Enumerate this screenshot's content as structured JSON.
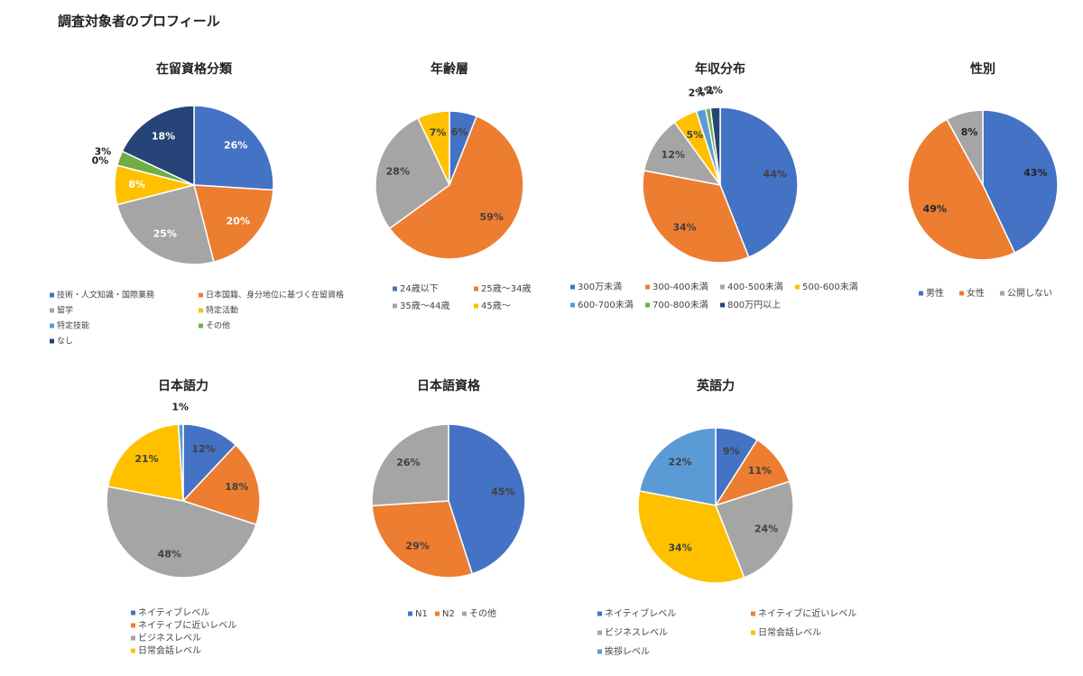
{
  "title": "調査対象者のプロフィール",
  "chart_data": [
    {
      "type": "pie",
      "title": "在留資格分類",
      "categories": [
        "技術・人文知識・国際業務",
        "日本国籍、身分地位に基づく在留資格",
        "留学",
        "特定活動",
        "特定技能",
        "その他",
        "なし"
      ],
      "values": [
        26,
        20,
        25,
        8,
        0,
        3,
        18
      ],
      "value_labels": [
        "26%",
        "20%",
        "25%",
        "8%",
        "0%",
        "3%",
        "18%"
      ],
      "colors": [
        "#4472c4",
        "#ed7d31",
        "#a5a5a5",
        "#ffc000",
        "#5b9bd5",
        "#70ad47",
        "#264478"
      ],
      "label_color": "#ffffff"
    },
    {
      "type": "pie",
      "title": "年齢層",
      "categories": [
        "24歳以下",
        "25歳〜34歳",
        "35歳〜44歳",
        "45歳〜"
      ],
      "values": [
        6,
        59,
        28,
        7
      ],
      "value_labels": [
        "6%",
        "59%",
        "28%",
        "7%"
      ],
      "colors": [
        "#4472c4",
        "#ed7d31",
        "#a5a5a5",
        "#ffc000"
      ],
      "label_color": "#404040"
    },
    {
      "type": "pie",
      "title": "年収分布",
      "categories": [
        "300万未満",
        "300-400未満",
        "400-500未満",
        "500-600未満",
        "600-700未満",
        "700-800未満",
        "800万円以上"
      ],
      "values": [
        44,
        34,
        12,
        5,
        2,
        1,
        2
      ],
      "value_labels": [
        "44%",
        "34%",
        "12%",
        "5%",
        "2%",
        "1%",
        "2%"
      ],
      "colors": [
        "#4472c4",
        "#ed7d31",
        "#a5a5a5",
        "#ffc000",
        "#5b9bd5",
        "#70ad47",
        "#264478"
      ],
      "label_color": "#404040"
    },
    {
      "type": "pie",
      "title": "性別",
      "categories": [
        "男性",
        "女性",
        "公開しない"
      ],
      "values": [
        43,
        49,
        8
      ],
      "value_labels": [
        "43%",
        "49%",
        "8%"
      ],
      "colors": [
        "#4472c4",
        "#ed7d31",
        "#a5a5a5"
      ],
      "label_color": "#262626"
    },
    {
      "type": "pie",
      "title": "日本語力",
      "categories": [
        "ネイティブレベル",
        "ネイティブに近いレベル",
        "ビジネスレベル",
        "日常会話レベル",
        null
      ],
      "values": [
        12,
        18,
        48,
        21,
        1
      ],
      "value_labels": [
        "12%",
        "18%",
        "48%",
        "21%",
        "1%"
      ],
      "colors": [
        "#4472c4",
        "#ed7d31",
        "#a5a5a5",
        "#ffc000",
        "#5b9bd5"
      ],
      "label_color": "#404040"
    },
    {
      "type": "pie",
      "title": "日本語資格",
      "categories": [
        "N1",
        "N2",
        "その他"
      ],
      "values": [
        45,
        29,
        26
      ],
      "value_labels": [
        "45%",
        "29%",
        "26%"
      ],
      "colors": [
        "#4472c4",
        "#ed7d31",
        "#a5a5a5"
      ],
      "label_color": "#404040"
    },
    {
      "type": "pie",
      "title": "英語力",
      "categories": [
        "ネイティブレベル",
        "ネイティブに近いレベル",
        "ビジネスレベル",
        "日常会話レベル",
        "挨拶レベル"
      ],
      "values": [
        9,
        11,
        24,
        34,
        22
      ],
      "value_labels": [
        "9%",
        "11%",
        "24%",
        "34%",
        "22%"
      ],
      "colors": [
        "#4472c4",
        "#ed7d31",
        "#a5a5a5",
        "#ffc000",
        "#5b9bd5"
      ],
      "label_color": "#404040"
    }
  ]
}
